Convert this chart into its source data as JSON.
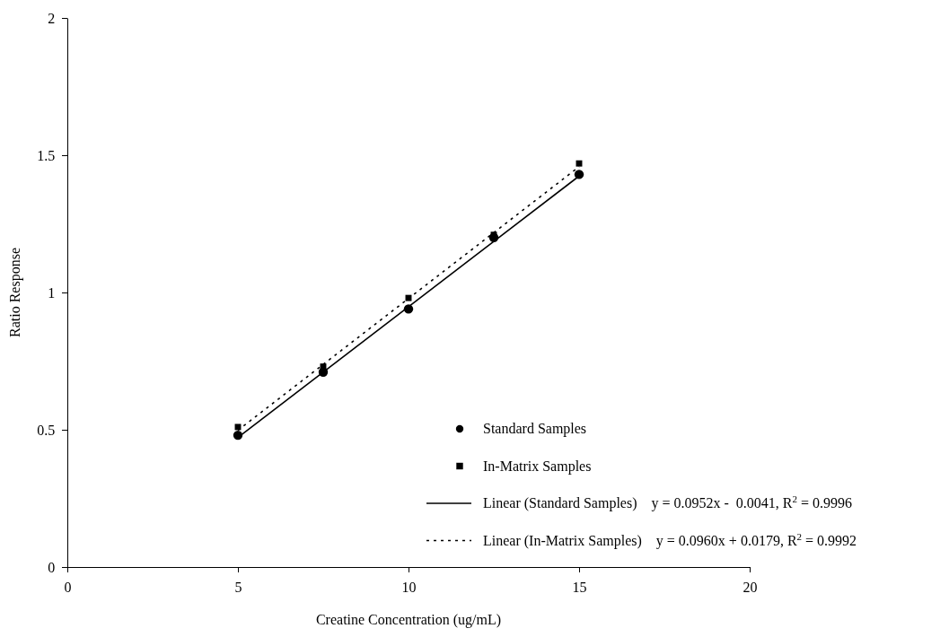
{
  "chart_data": {
    "type": "scatter",
    "xlabel": "Creatine Concentration (ug/mL)",
    "ylabel": "Ratio Response",
    "xlim": [
      0,
      20
    ],
    "xticks": [
      0,
      5,
      10,
      15,
      20
    ],
    "ylim": [
      0,
      2
    ],
    "yticks": [
      0,
      0.5,
      1,
      1.5,
      2
    ],
    "grid": false,
    "legend": "bottom right",
    "series": [
      {
        "name": "Standard Samples",
        "marker": "circle",
        "color": "#000000",
        "x": [
          5,
          7.5,
          10,
          12.5,
          15
        ],
        "values": [
          0.48,
          0.71,
          0.94,
          1.2,
          1.43
        ]
      },
      {
        "name": "In-Matrix Samples",
        "marker": "square",
        "color": "#000000",
        "x": [
          5,
          7.5,
          10,
          12.5,
          15
        ],
        "values": [
          0.51,
          0.73,
          0.98,
          1.21,
          1.47
        ]
      },
      {
        "name": "Linear (Standard Samples)",
        "type": "line",
        "marker": "none",
        "line_style": "solid",
        "color": "#000000",
        "x": [
          5,
          15
        ],
        "values": [
          0.472,
          1.424
        ]
      },
      {
        "name": "Linear (In-Matrix Samples)",
        "type": "line",
        "marker": "none",
        "line_style": "dotted",
        "color": "#000000",
        "x": [
          5,
          15
        ],
        "values": [
          0.498,
          1.458
        ]
      }
    ],
    "annotations": [
      "y = 0.0952x -  0.0041, R$^{2}$ = 0.9996",
      "y = 0.0960x + 0.0179, R$^{2}$ = 0.9992"
    ]
  }
}
